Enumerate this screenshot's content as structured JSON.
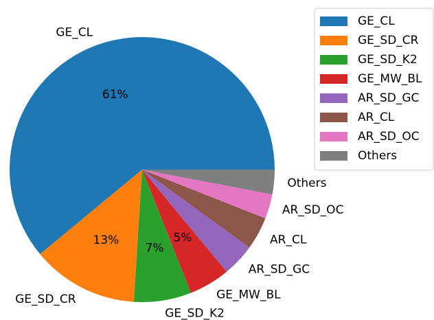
{
  "chart_data": {
    "type": "pie",
    "categories": [
      "GE_CL",
      "GE_SD_CR",
      "GE_SD_K2",
      "GE_MW_BL",
      "AR_SD_GC",
      "AR_CL",
      "AR_SD_OC",
      "Others"
    ],
    "values": [
      61,
      13,
      7,
      5,
      4,
      4,
      3,
      3
    ],
    "value_labels": [
      "61%",
      "13%",
      "7%",
      "5%",
      null,
      null,
      null,
      null
    ],
    "colors": [
      "#1f77b4",
      "#ff7f0e",
      "#2ca02c",
      "#d62728",
      "#9467bd",
      "#8c564b",
      "#e377c2",
      "#7f7f7f"
    ],
    "legend": "upper right"
  }
}
